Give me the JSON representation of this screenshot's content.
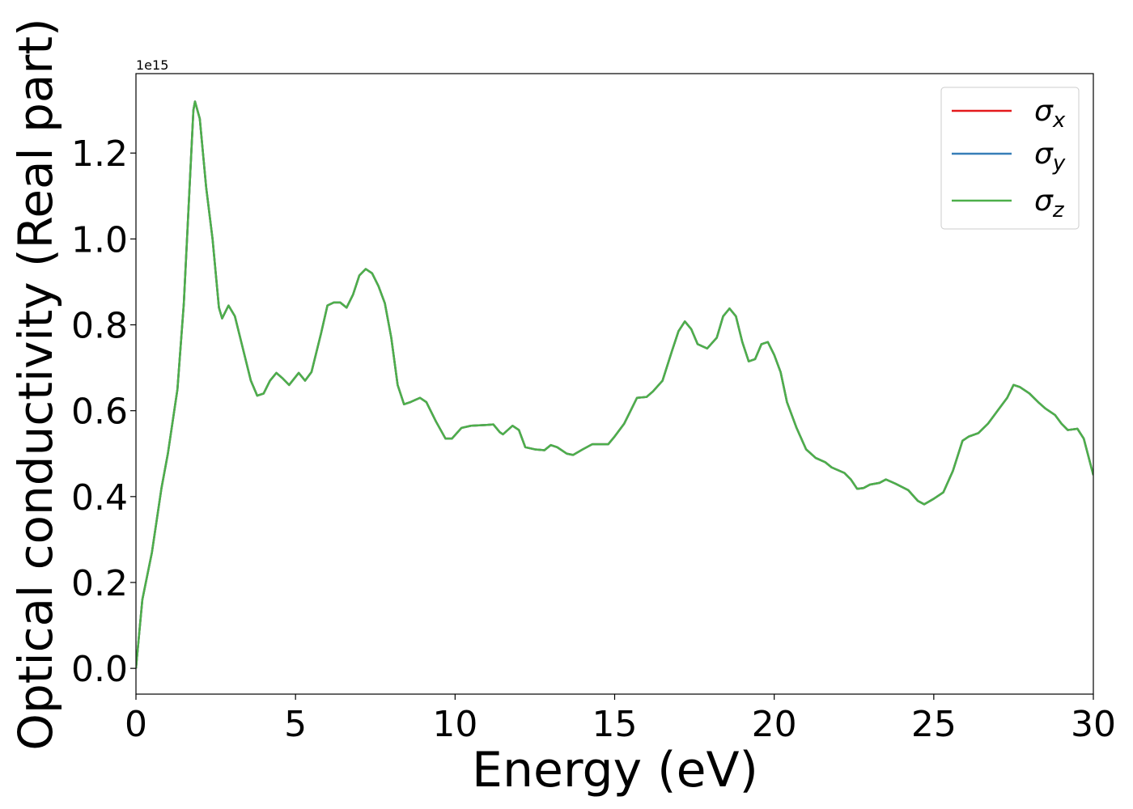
{
  "chart_data": {
    "type": "line",
    "xlabel": "Energy (eV)",
    "ylabel": "Optical conductivity (Real part)",
    "y_offset_label": "1e15",
    "xlim": [
      0,
      30
    ],
    "ylim": [
      -0.06,
      1.385
    ],
    "xticks": [
      0,
      5,
      10,
      15,
      20,
      25,
      30
    ],
    "yticks": [
      {
        "value": 0,
        "label": "0.0"
      },
      0.2,
      0.4,
      0.6,
      0.8,
      {
        "value": 1,
        "label": "1.0"
      },
      1.2
    ],
    "legend": "upper right",
    "x": [
      0,
      0.2,
      0.5,
      0.8,
      1.0,
      1.3,
      1.5,
      1.7,
      1.8,
      1.85,
      2.0,
      2.2,
      2.4,
      2.6,
      2.7,
      2.9,
      3.1,
      3.3,
      3.6,
      3.8,
      4.0,
      4.2,
      4.4,
      4.6,
      4.8,
      5.1,
      5.3,
      5.5,
      5.8,
      6.0,
      6.2,
      6.4,
      6.6,
      6.8,
      7.0,
      7.2,
      7.4,
      7.6,
      7.8,
      8.0,
      8.2,
      8.4,
      8.6,
      8.9,
      9.1,
      9.4,
      9.7,
      9.9,
      10.2,
      10.5,
      11.0,
      11.2,
      11.4,
      11.5,
      11.8,
      12.0,
      12.2,
      12.5,
      12.8,
      13.0,
      13.2,
      13.5,
      13.7,
      14.0,
      14.3,
      14.8,
      15.0,
      15.3,
      15.5,
      15.7,
      16.0,
      16.2,
      16.5,
      16.8,
      17.0,
      17.2,
      17.4,
      17.6,
      17.9,
      18.2,
      18.4,
      18.6,
      18.8,
      19.0,
      19.2,
      19.4,
      19.6,
      19.8,
      20.0,
      20.2,
      20.4,
      20.7,
      21.0,
      21.3,
      21.6,
      21.8,
      22.2,
      22.4,
      22.6,
      22.8,
      23.0,
      23.3,
      23.5,
      23.8,
      24.2,
      24.5,
      24.7,
      25.0,
      25.3,
      25.6,
      25.9,
      26.1,
      26.4,
      26.7,
      27.0,
      27.3,
      27.5,
      27.7,
      28.0,
      28.3,
      28.5,
      28.8,
      29.0,
      29.2,
      29.5,
      29.7,
      30.0
    ],
    "series": [
      {
        "name": "σx",
        "color": "#e41a1c",
        "values": [
          0,
          0.16,
          0.27,
          0.42,
          0.5,
          0.65,
          0.85,
          1.15,
          1.3,
          1.32,
          1.28,
          1.12,
          1.0,
          0.84,
          0.815,
          0.845,
          0.82,
          0.76,
          0.67,
          0.635,
          0.64,
          0.67,
          0.688,
          0.675,
          0.66,
          0.688,
          0.67,
          0.69,
          0.78,
          0.845,
          0.852,
          0.852,
          0.84,
          0.87,
          0.915,
          0.93,
          0.92,
          0.89,
          0.85,
          0.77,
          0.66,
          0.615,
          0.62,
          0.63,
          0.62,
          0.575,
          0.535,
          0.535,
          0.56,
          0.565,
          0.567,
          0.568,
          0.55,
          0.545,
          0.565,
          0.555,
          0.515,
          0.51,
          0.508,
          0.52,
          0.515,
          0.5,
          0.497,
          0.51,
          0.522,
          0.522,
          0.54,
          0.57,
          0.6,
          0.63,
          0.632,
          0.645,
          0.67,
          0.74,
          0.785,
          0.808,
          0.79,
          0.755,
          0.745,
          0.77,
          0.82,
          0.838,
          0.82,
          0.76,
          0.715,
          0.72,
          0.755,
          0.76,
          0.73,
          0.69,
          0.62,
          0.56,
          0.51,
          0.49,
          0.48,
          0.468,
          0.455,
          0.44,
          0.418,
          0.42,
          0.428,
          0.432,
          0.44,
          0.43,
          0.415,
          0.39,
          0.382,
          0.395,
          0.41,
          0.46,
          0.53,
          0.54,
          0.548,
          0.57,
          0.6,
          0.63,
          0.66,
          0.655,
          0.64,
          0.618,
          0.605,
          0.59,
          0.57,
          0.555,
          0.558,
          0.535,
          0.45
        ]
      },
      {
        "name": "σy",
        "color": "#377eb8",
        "values": [
          0,
          0.16,
          0.27,
          0.42,
          0.5,
          0.65,
          0.85,
          1.15,
          1.3,
          1.32,
          1.28,
          1.12,
          1.0,
          0.84,
          0.815,
          0.845,
          0.82,
          0.76,
          0.67,
          0.635,
          0.64,
          0.67,
          0.688,
          0.675,
          0.66,
          0.688,
          0.67,
          0.69,
          0.78,
          0.845,
          0.852,
          0.852,
          0.84,
          0.87,
          0.915,
          0.93,
          0.92,
          0.89,
          0.85,
          0.77,
          0.66,
          0.615,
          0.62,
          0.63,
          0.62,
          0.575,
          0.535,
          0.535,
          0.56,
          0.565,
          0.567,
          0.568,
          0.55,
          0.545,
          0.565,
          0.555,
          0.515,
          0.51,
          0.508,
          0.52,
          0.515,
          0.5,
          0.497,
          0.51,
          0.522,
          0.522,
          0.54,
          0.57,
          0.6,
          0.63,
          0.632,
          0.645,
          0.67,
          0.74,
          0.785,
          0.808,
          0.79,
          0.755,
          0.745,
          0.77,
          0.82,
          0.838,
          0.82,
          0.76,
          0.715,
          0.72,
          0.755,
          0.76,
          0.73,
          0.69,
          0.62,
          0.56,
          0.51,
          0.49,
          0.48,
          0.468,
          0.455,
          0.44,
          0.418,
          0.42,
          0.428,
          0.432,
          0.44,
          0.43,
          0.415,
          0.39,
          0.382,
          0.395,
          0.41,
          0.46,
          0.53,
          0.54,
          0.548,
          0.57,
          0.6,
          0.63,
          0.66,
          0.655,
          0.64,
          0.618,
          0.605,
          0.59,
          0.57,
          0.555,
          0.558,
          0.535,
          0.45
        ]
      },
      {
        "name": "σz",
        "color": "#4daf4a",
        "values": [
          0,
          0.16,
          0.27,
          0.42,
          0.5,
          0.65,
          0.85,
          1.15,
          1.3,
          1.32,
          1.28,
          1.12,
          1.0,
          0.84,
          0.815,
          0.845,
          0.82,
          0.76,
          0.67,
          0.635,
          0.64,
          0.67,
          0.688,
          0.675,
          0.66,
          0.688,
          0.67,
          0.69,
          0.78,
          0.845,
          0.852,
          0.852,
          0.84,
          0.87,
          0.915,
          0.93,
          0.92,
          0.89,
          0.85,
          0.77,
          0.66,
          0.615,
          0.62,
          0.63,
          0.62,
          0.575,
          0.535,
          0.535,
          0.56,
          0.565,
          0.567,
          0.568,
          0.55,
          0.545,
          0.565,
          0.555,
          0.515,
          0.51,
          0.508,
          0.52,
          0.515,
          0.5,
          0.497,
          0.51,
          0.522,
          0.522,
          0.54,
          0.57,
          0.6,
          0.63,
          0.632,
          0.645,
          0.67,
          0.74,
          0.785,
          0.808,
          0.79,
          0.755,
          0.745,
          0.77,
          0.82,
          0.838,
          0.82,
          0.76,
          0.715,
          0.72,
          0.755,
          0.76,
          0.73,
          0.69,
          0.62,
          0.56,
          0.51,
          0.49,
          0.48,
          0.468,
          0.455,
          0.44,
          0.418,
          0.42,
          0.428,
          0.432,
          0.44,
          0.43,
          0.415,
          0.39,
          0.382,
          0.395,
          0.41,
          0.46,
          0.53,
          0.54,
          0.548,
          0.57,
          0.6,
          0.63,
          0.66,
          0.655,
          0.64,
          0.618,
          0.605,
          0.59,
          0.57,
          0.555,
          0.558,
          0.535,
          0.45
        ]
      }
    ]
  }
}
